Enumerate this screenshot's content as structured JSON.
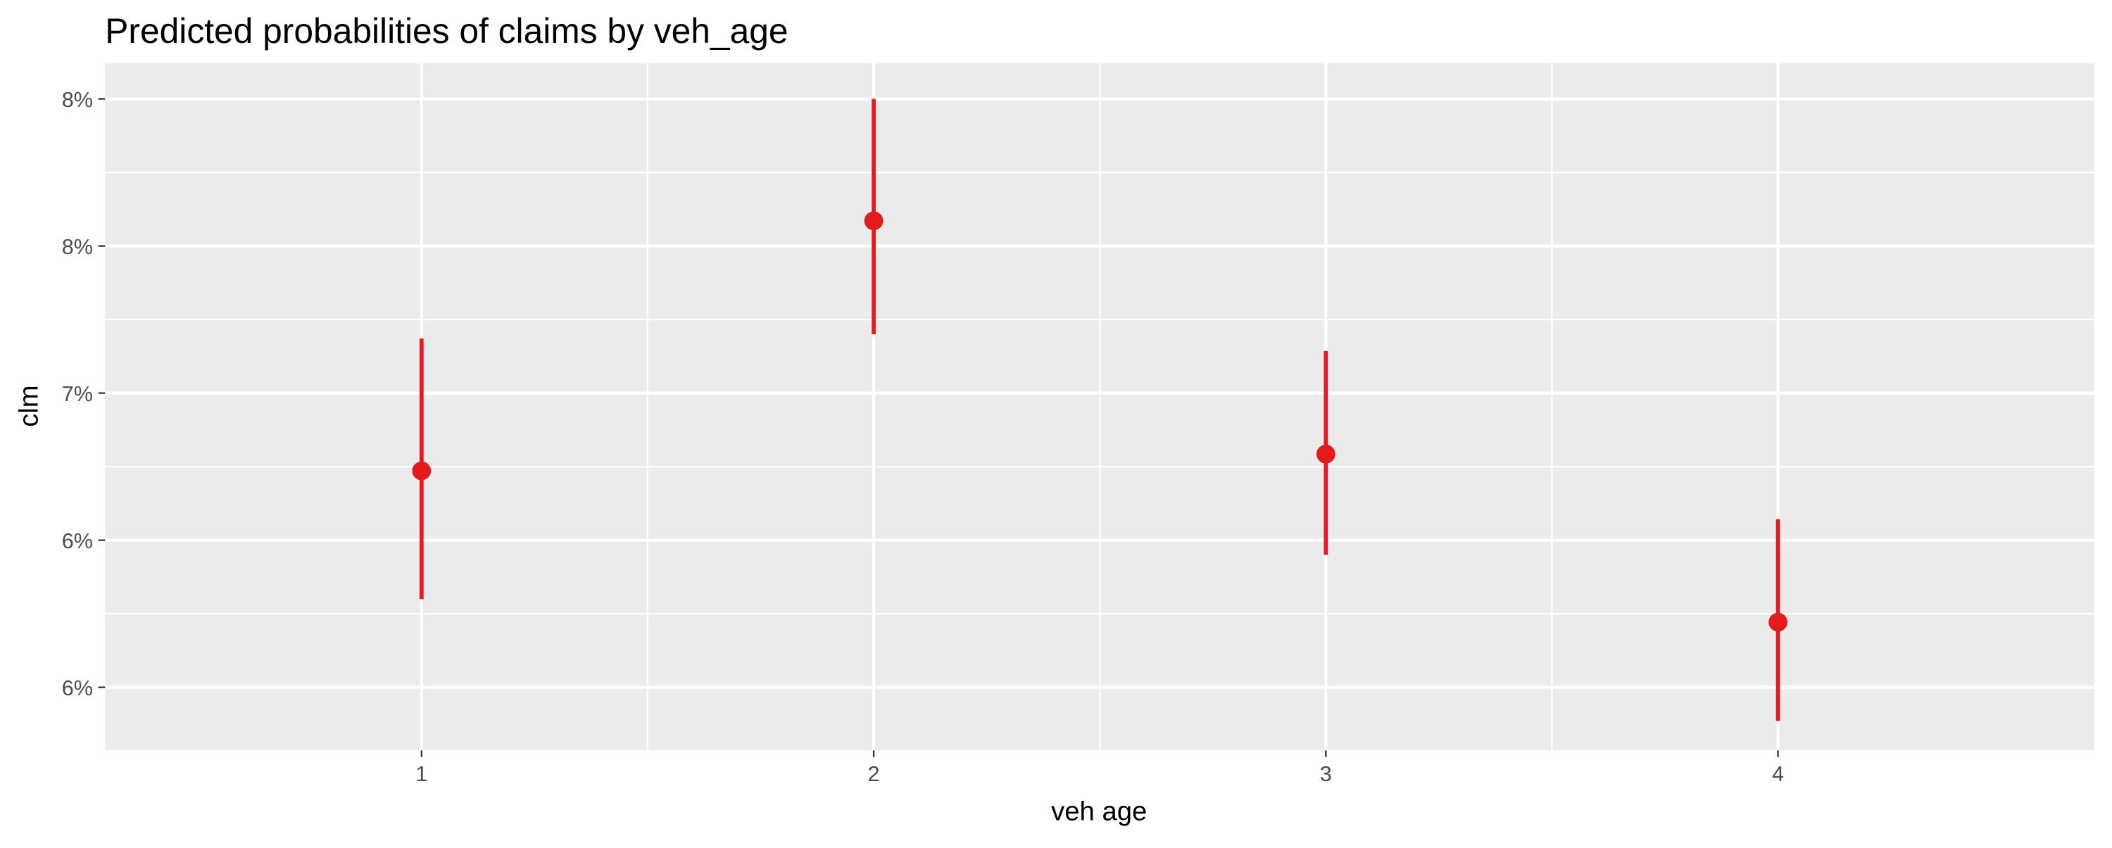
{
  "chart_data": {
    "type": "pointrange",
    "title": "Predicted probabilities of claims by veh_age",
    "x_label": "veh age",
    "y_label": "clm",
    "categories": [
      "1",
      "2",
      "3",
      "4"
    ],
    "values": [
      6.63,
      7.82,
      6.71,
      5.91
    ],
    "lower": [
      6.02,
      7.28,
      6.23,
      5.44
    ],
    "upper": [
      7.26,
      8.4,
      7.2,
      6.4
    ],
    "color": "#e41a1c",
    "ylim": [
      5.3,
      8.57
    ],
    "yticks": [
      {
        "value": 5.6,
        "label": "6%"
      },
      {
        "value": 6.3,
        "label": "6%"
      },
      {
        "value": 7.0,
        "label": "7%"
      },
      {
        "value": 7.7,
        "label": "8%"
      },
      {
        "value": 8.4,
        "label": "8%"
      }
    ],
    "grid": true
  }
}
